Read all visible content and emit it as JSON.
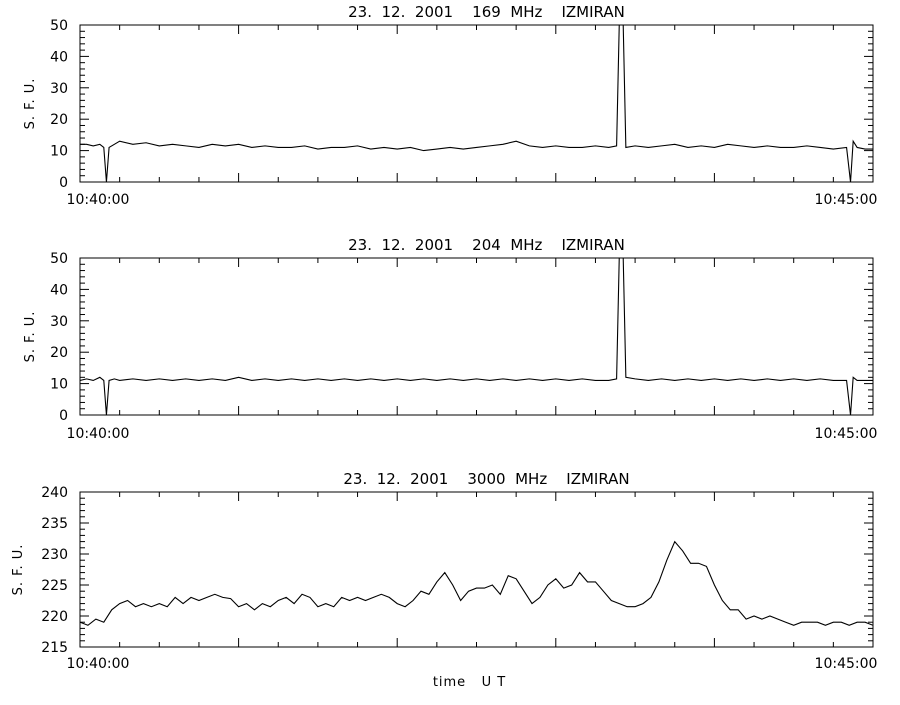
{
  "colors": {
    "background": "#ffffff",
    "line": "#000000"
  },
  "chart_data": [
    {
      "type": "line",
      "title": "23.  12.  2001    169  MHz    IZMIRAN",
      "ylabel": "S. F. U.",
      "xlabel": "",
      "ylim": [
        0,
        50
      ],
      "yticks": [
        0,
        10,
        20,
        30,
        40,
        50
      ],
      "xlim": [
        "10:40:00",
        "10:45:00"
      ],
      "xtick_labels": [
        "10:40:00",
        "10:45:00"
      ],
      "grid": false,
      "series": [
        {
          "x_seconds_from": "10:40:00",
          "points": [
            [
              0,
              12
            ],
            [
              2.5,
              12
            ],
            [
              5,
              11.5
            ],
            [
              7.5,
              12
            ],
            [
              9,
              11
            ],
            [
              10,
              0
            ],
            [
              11,
              11
            ],
            [
              13,
              12
            ],
            [
              15,
              13
            ],
            [
              20,
              12
            ],
            [
              25,
              12.5
            ],
            [
              30,
              11.5
            ],
            [
              35,
              12
            ],
            [
              40,
              11.5
            ],
            [
              45,
              11
            ],
            [
              50,
              12
            ],
            [
              55,
              11.5
            ],
            [
              60,
              12
            ],
            [
              65,
              11
            ],
            [
              70,
              11.5
            ],
            [
              75,
              11
            ],
            [
              80,
              11
            ],
            [
              85,
              11.5
            ],
            [
              90,
              10.5
            ],
            [
              95,
              11
            ],
            [
              100,
              11
            ],
            [
              105,
              11.5
            ],
            [
              110,
              10.5
            ],
            [
              115,
              11
            ],
            [
              120,
              10.5
            ],
            [
              125,
              11
            ],
            [
              130,
              10
            ],
            [
              135,
              10.5
            ],
            [
              140,
              11
            ],
            [
              145,
              10.5
            ],
            [
              150,
              11
            ],
            [
              155,
              11.5
            ],
            [
              160,
              12
            ],
            [
              165,
              13
            ],
            [
              170,
              11.5
            ],
            [
              175,
              11
            ],
            [
              180,
              11.5
            ],
            [
              185,
              11
            ],
            [
              190,
              11
            ],
            [
              195,
              11.5
            ],
            [
              200,
              11
            ],
            [
              203,
              11.5
            ],
            [
              204,
              50
            ],
            [
              205.5,
              50
            ],
            [
              206.5,
              11
            ],
            [
              210,
              11.5
            ],
            [
              215,
              11
            ],
            [
              220,
              11.5
            ],
            [
              225,
              12
            ],
            [
              230,
              11
            ],
            [
              235,
              11.5
            ],
            [
              240,
              11
            ],
            [
              245,
              12
            ],
            [
              250,
              11.5
            ],
            [
              255,
              11
            ],
            [
              260,
              11.5
            ],
            [
              265,
              11
            ],
            [
              270,
              11
            ],
            [
              275,
              11.5
            ],
            [
              280,
              11
            ],
            [
              285,
              10.5
            ],
            [
              290,
              11
            ],
            [
              291.5,
              0
            ],
            [
              292.5,
              13
            ],
            [
              294,
              11
            ],
            [
              297,
              10.5
            ],
            [
              300,
              10.5
            ]
          ]
        }
      ]
    },
    {
      "type": "line",
      "title": "23.  12.  2001    204  MHz    IZMIRAN",
      "ylabel": "S. F. U.",
      "xlabel": "",
      "ylim": [
        0,
        50
      ],
      "yticks": [
        0,
        10,
        20,
        30,
        40,
        50
      ],
      "xlim": [
        "10:40:00",
        "10:45:00"
      ],
      "xtick_labels": [
        "10:40:00",
        "10:45:00"
      ],
      "grid": false,
      "series": [
        {
          "x_seconds_from": "10:40:00",
          "points": [
            [
              0,
              11
            ],
            [
              2.5,
              11.5
            ],
            [
              5,
              11
            ],
            [
              7.5,
              12
            ],
            [
              9,
              11
            ],
            [
              10,
              0
            ],
            [
              11,
              11
            ],
            [
              13,
              11.5
            ],
            [
              15,
              11
            ],
            [
              20,
              11.5
            ],
            [
              25,
              11
            ],
            [
              30,
              11.5
            ],
            [
              35,
              11
            ],
            [
              40,
              11.5
            ],
            [
              45,
              11
            ],
            [
              50,
              11.5
            ],
            [
              55,
              11
            ],
            [
              60,
              12
            ],
            [
              65,
              11
            ],
            [
              70,
              11.5
            ],
            [
              75,
              11
            ],
            [
              80,
              11.5
            ],
            [
              85,
              11
            ],
            [
              90,
              11.5
            ],
            [
              95,
              11
            ],
            [
              100,
              11.5
            ],
            [
              105,
              11
            ],
            [
              110,
              11.5
            ],
            [
              115,
              11
            ],
            [
              120,
              11.5
            ],
            [
              125,
              11
            ],
            [
              130,
              11.5
            ],
            [
              135,
              11
            ],
            [
              140,
              11.5
            ],
            [
              145,
              11
            ],
            [
              150,
              11.5
            ],
            [
              155,
              11
            ],
            [
              160,
              11.5
            ],
            [
              165,
              11
            ],
            [
              170,
              11.5
            ],
            [
              175,
              11
            ],
            [
              180,
              11.5
            ],
            [
              185,
              11
            ],
            [
              190,
              11.5
            ],
            [
              195,
              11
            ],
            [
              200,
              11
            ],
            [
              203,
              11.5
            ],
            [
              204,
              50
            ],
            [
              205.5,
              50
            ],
            [
              206.5,
              12
            ],
            [
              210,
              11.5
            ],
            [
              215,
              11
            ],
            [
              220,
              11.5
            ],
            [
              225,
              11
            ],
            [
              230,
              11.5
            ],
            [
              235,
              11
            ],
            [
              240,
              11.5
            ],
            [
              245,
              11
            ],
            [
              250,
              11.5
            ],
            [
              255,
              11
            ],
            [
              260,
              11.5
            ],
            [
              265,
              11
            ],
            [
              270,
              11.5
            ],
            [
              275,
              11
            ],
            [
              280,
              11.5
            ],
            [
              285,
              11
            ],
            [
              290,
              11
            ],
            [
              291.5,
              0
            ],
            [
              292.5,
              12
            ],
            [
              294,
              11
            ],
            [
              297,
              11
            ],
            [
              300,
              11
            ]
          ]
        }
      ]
    },
    {
      "type": "line",
      "title": "23.  12.  2001    3000  MHz    IZMIRAN",
      "ylabel": "S. F. U.",
      "xlabel": "time   U T",
      "ylim": [
        215,
        240
      ],
      "yticks": [
        215,
        220,
        225,
        230,
        235,
        240
      ],
      "xlim": [
        "10:40:00",
        "10:45:00"
      ],
      "xtick_labels": [
        "10:40:00",
        "10:45:00"
      ],
      "grid": false,
      "series": [
        {
          "x_seconds_from": "10:40:00",
          "points": [
            [
              0,
              219
            ],
            [
              3,
              218.5
            ],
            [
              6,
              219.5
            ],
            [
              9,
              219
            ],
            [
              12,
              221
            ],
            [
              15,
              222
            ],
            [
              18,
              222.5
            ],
            [
              21,
              221.5
            ],
            [
              24,
              222
            ],
            [
              27,
              221.5
            ],
            [
              30,
              222
            ],
            [
              33,
              221.5
            ],
            [
              36,
              223
            ],
            [
              39,
              222
            ],
            [
              42,
              223
            ],
            [
              45,
              222.5
            ],
            [
              48,
              223
            ],
            [
              51,
              223.5
            ],
            [
              54,
              223
            ],
            [
              57,
              222.8
            ],
            [
              60,
              221.5
            ],
            [
              63,
              222
            ],
            [
              66,
              221
            ],
            [
              69,
              222
            ],
            [
              72,
              221.5
            ],
            [
              75,
              222.5
            ],
            [
              78,
              223
            ],
            [
              81,
              222
            ],
            [
              84,
              223.5
            ],
            [
              87,
              223
            ],
            [
              90,
              221.5
            ],
            [
              93,
              222
            ],
            [
              96,
              221.5
            ],
            [
              99,
              223
            ],
            [
              102,
              222.5
            ],
            [
              105,
              223
            ],
            [
              108,
              222.5
            ],
            [
              111,
              223
            ],
            [
              114,
              223.5
            ],
            [
              117,
              223
            ],
            [
              120,
              222
            ],
            [
              123,
              221.5
            ],
            [
              126,
              222.5
            ],
            [
              129,
              224
            ],
            [
              132,
              223.5
            ],
            [
              135,
              225.5
            ],
            [
              138,
              227
            ],
            [
              141,
              225
            ],
            [
              144,
              222.5
            ],
            [
              147,
              224
            ],
            [
              150,
              224.5
            ],
            [
              153,
              224.5
            ],
            [
              156,
              225
            ],
            [
              159,
              223.5
            ],
            [
              162,
              226.5
            ],
            [
              165,
              226
            ],
            [
              168,
              224
            ],
            [
              171,
              222
            ],
            [
              174,
              223
            ],
            [
              177,
              225
            ],
            [
              180,
              226
            ],
            [
              183,
              224.5
            ],
            [
              186,
              225
            ],
            [
              189,
              227
            ],
            [
              192,
              225.5
            ],
            [
              195,
              225.5
            ],
            [
              198,
              224
            ],
            [
              201,
              222.5
            ],
            [
              204,
              222
            ],
            [
              207,
              221.5
            ],
            [
              210,
              221.5
            ],
            [
              213,
              222
            ],
            [
              216,
              223
            ],
            [
              219,
              225.5
            ],
            [
              222,
              229
            ],
            [
              225,
              232
            ],
            [
              228,
              230.5
            ],
            [
              231,
              228.5
            ],
            [
              234,
              228.5
            ],
            [
              237,
              228
            ],
            [
              240,
              225
            ],
            [
              243,
              222.5
            ],
            [
              246,
              221
            ],
            [
              249,
              221
            ],
            [
              252,
              219.5
            ],
            [
              255,
              220
            ],
            [
              258,
              219.5
            ],
            [
              261,
              220
            ],
            [
              264,
              219.5
            ],
            [
              267,
              219
            ],
            [
              270,
              218.5
            ],
            [
              273,
              219
            ],
            [
              276,
              219
            ],
            [
              279,
              219
            ],
            [
              282,
              218.5
            ],
            [
              285,
              219
            ],
            [
              288,
              219
            ],
            [
              291,
              218.5
            ],
            [
              294,
              219
            ],
            [
              297,
              219
            ],
            [
              300,
              218.5
            ]
          ]
        }
      ]
    }
  ]
}
